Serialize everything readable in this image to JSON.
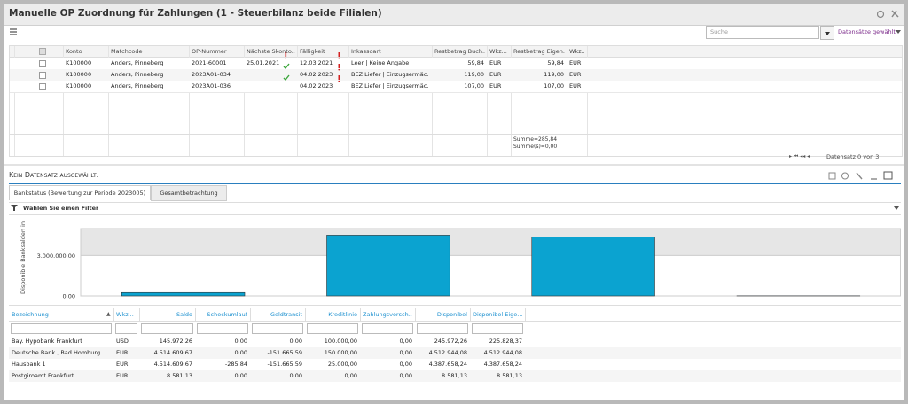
{
  "header": {
    "title": "Manuelle OP Zuordnung für Zahlungen (1 - Steuerbilanz beide Filialen)",
    "search_placeholder": "Suche",
    "selection_label": "Datensätze gewählt"
  },
  "op_table": {
    "columns": [
      "Konto",
      "Matchcode",
      "OP-Nummer",
      "Nächste Skonto...",
      "Fälligkeit",
      "Inkassoart",
      "Restbetrag Buch...",
      "Wkz...",
      "Restbetrag Eigen...",
      "Wkz..."
    ],
    "rows": [
      [
        "K100000",
        "Anders, Pinneberg",
        "2021-60001",
        "25.01.2021",
        "12.03.2021",
        "Leer  |  Keine Angabe",
        "59,84",
        "EUR",
        "59,84",
        "EUR"
      ],
      [
        "K100000",
        "Anders, Pinneberg",
        "2023A01-034",
        null,
        "04.02.2023",
        "BEZ Liefer  |  Einzugsermäc...",
        "119,00",
        "EUR",
        "119,00",
        "EUR"
      ],
      [
        "K100000",
        "Anders, Pinneberg",
        "2023A01-036",
        null,
        "04.02.2023",
        "BEZ Liefer  |  Einzugsermäc...",
        "107,00",
        "EUR",
        "107,00",
        "EUR"
      ]
    ],
    "sum_lines": [
      "Summe=285,84",
      "Summe(s)=0,00"
    ],
    "pager": "Datensatz 0 von 3"
  },
  "detail": {
    "status": "Kein Datensatz ausgewählt.",
    "tabs": [
      "Bankstatus (Bewertung zur Periode 2023005)",
      "Gesamtbetrachtung"
    ],
    "filter": "Wählen Sie einen Filter"
  },
  "chart_data": {
    "type": "bar",
    "y_label": "Disponible Banksalden in",
    "values": [
      245972.26,
      4512944.08,
      4387658.24,
      8581.13
    ],
    "color": "#0ba3d0",
    "ylim": [
      0,
      5000000
    ],
    "yticks": [
      {
        "value": 0,
        "label": "0,00"
      },
      {
        "value": 3000000,
        "label": "3.000.000,00"
      }
    ]
  },
  "bank_table": {
    "columns": [
      "Bezeichnung",
      "Wkz...",
      "Saldo",
      "Scheckumlauf",
      "Geldtransit",
      "Kreditlinie",
      "Zahlungsvorsch...",
      "Disponibel",
      "Disponibel Eige..."
    ],
    "rows": [
      [
        "Bay. Hypobank Frankfurt",
        "USD",
        "145.972,26",
        "0,00",
        "0,00",
        "100.000,00",
        "0,00",
        "245.972,26",
        "225.828,37"
      ],
      [
        "Deutsche Bank , Bad Homburg",
        "EUR",
        "4.514.609,67",
        "0,00",
        "-151.665,59",
        "150.000,00",
        "0,00",
        "4.512.944,08",
        "4.512.944,08"
      ],
      [
        "Hausbank 1",
        "EUR",
        "4.514.609,67",
        "-285,84",
        "-151.665,59",
        "25.000,00",
        "0,00",
        "4.387.658,24",
        "4.387.658,24"
      ],
      [
        "Postgiroamt Frankfurt",
        "EUR",
        "8.581,13",
        "0,00",
        "0,00",
        "0,00",
        "0,00",
        "8.581,13",
        "8.581,13"
      ]
    ]
  }
}
